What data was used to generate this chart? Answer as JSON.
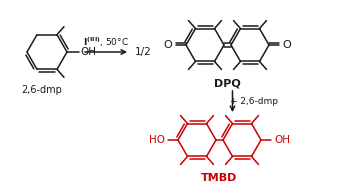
{
  "bg_color": "#ffffff",
  "line_color": "#1a1a1a",
  "red_color": "#cc0000",
  "fig_width": 3.54,
  "fig_height": 1.89,
  "dpi": 100,
  "labels": {
    "reactant_name": "2,6-dmp",
    "arrow_label_1": "I",
    "arrow_label_2": "(III)",
    "arrow_label_3": ", 50°C",
    "fraction": "1/2",
    "dpq_name": "DPQ",
    "plus_26dmp": "+ 2,6-dmp",
    "tmbd_name": "TMBD",
    "OH": "OH",
    "HO": "HO",
    "O": "O"
  }
}
